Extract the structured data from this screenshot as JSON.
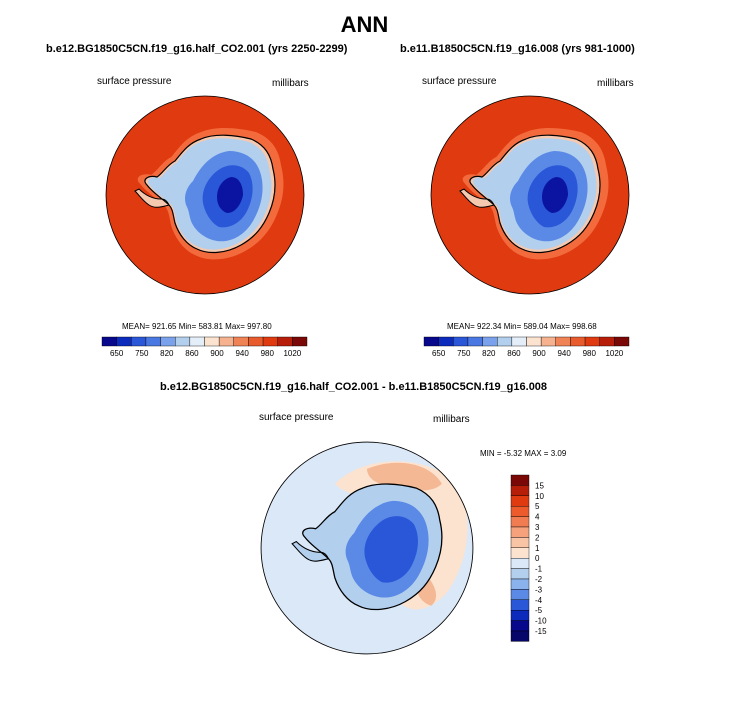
{
  "figure_title": "ANN",
  "colors": {
    "ocean_high": "#e03a10",
    "ocean_ring": "#f36a3c",
    "land_coast_light": "#f5c8b0",
    "land_light": "#b3cfee",
    "land_mid": "#5a8ae6",
    "land_deep": "#2a56d8",
    "land_core": "#0a14a0",
    "diff_bg": "#dbe8f8",
    "diff_warm_light": "#fbe3d0",
    "diff_warm_mid": "#f4b894"
  },
  "panels": [
    {
      "title": "b.e12.BG1850C5CN.f19_g16.half_CO2.001 (yrs 2250-2299)",
      "variable": "surface pressure",
      "units": "millibars",
      "stats": "MEAN= 921.65   Min= 583.81   Max= 997.80",
      "colorbar_labels": [
        "650",
        "750",
        "820",
        "860",
        "900",
        "940",
        "980",
        "1020"
      ],
      "colorbar_colors": [
        "#08088c",
        "#0c2bbd",
        "#2a56d8",
        "#4a78e2",
        "#7aa2ec",
        "#b3cfee",
        "#e4eef9",
        "#fbe3d0",
        "#f6b28f",
        "#f08356",
        "#e85b2c",
        "#e03a10",
        "#b71e0a",
        "#7a0806"
      ]
    },
    {
      "title": "b.e11.B1850C5CN.f19_g16.008 (yrs 981-1000)",
      "variable": "surface pressure",
      "units": "millibars",
      "stats": "MEAN= 922.34   Min= 589.04   Max= 998.68",
      "colorbar_labels": [
        "650",
        "750",
        "820",
        "860",
        "900",
        "940",
        "980",
        "1020"
      ],
      "colorbar_colors": [
        "#08088c",
        "#0c2bbd",
        "#2a56d8",
        "#4a78e2",
        "#7aa2ec",
        "#b3cfee",
        "#e4eef9",
        "#fbe3d0",
        "#f6b28f",
        "#f08356",
        "#e85b2c",
        "#e03a10",
        "#b71e0a",
        "#7a0806"
      ]
    }
  ],
  "diff_panel": {
    "title": "b.e12.BG1850C5CN.f19_g16.half_CO2.001 - b.e11.B1850C5CN.f19_g16.008",
    "variable": "surface pressure",
    "units": "millibars",
    "stats": "MIN =   -5.32  MAX =    3.09",
    "colorbar_labels": [
      "15",
      "10",
      "5",
      "4",
      "3",
      "2",
      "1",
      "0",
      "-1",
      "-2",
      "-3",
      "-4",
      "-5",
      "-10",
      "-15"
    ],
    "colorbar_colors": [
      "#7a0806",
      "#b71e0a",
      "#e03a10",
      "#ed5a2c",
      "#f27c52",
      "#f6a07c",
      "#f9c4a6",
      "#fbe3d0",
      "#dbe8f8",
      "#b3cfee",
      "#8ab2ec",
      "#5a8ae6",
      "#2a56d8",
      "#0c2bbd",
      "#08088c",
      "#05056a"
    ]
  }
}
